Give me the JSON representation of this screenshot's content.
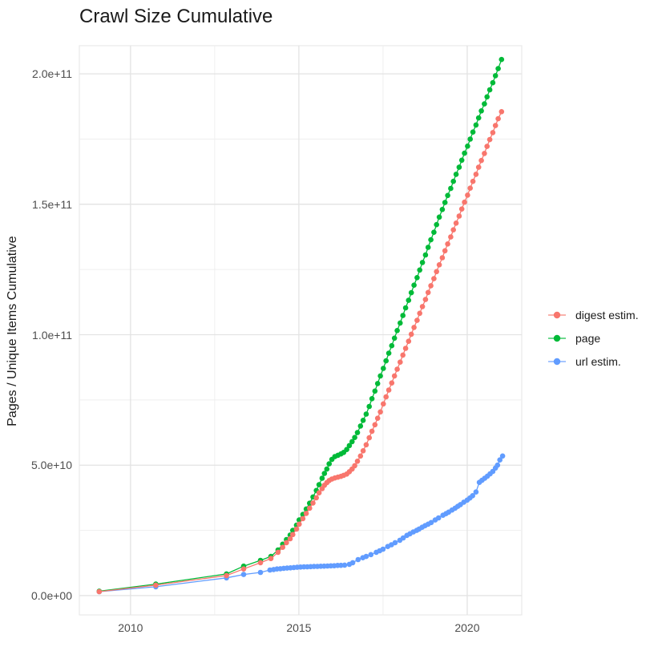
{
  "chart_data": {
    "type": "scatter",
    "title": "Crawl Size Cumulative",
    "xlabel": "",
    "ylabel": "Pages / Unique Items Cumulative",
    "grid": true,
    "legend_position": "right",
    "theme": {
      "background": "#FFFFFF",
      "grid_major": "#E3E3E3",
      "grid_minor": "#EFEFEF",
      "panel_border": "#E8E8E8",
      "tick_label_color": "#4D4D4D",
      "text_color": "#1A1A1A"
    },
    "x_axis": {
      "range": [
        2008.48,
        2021.62
      ],
      "ticks": [
        {
          "label": "2010",
          "value": 2010
        },
        {
          "label": "2015",
          "value": 2015
        },
        {
          "label": "2020",
          "value": 2020
        }
      ],
      "minor_ticks": [
        2012.5,
        2017.5
      ]
    },
    "y_axis": {
      "range": [
        -7400000000.0,
        210800000000.0
      ],
      "ticks": [
        {
          "label": "0.0e+00",
          "value": 0
        },
        {
          "label": "5.0e+10",
          "value": 50000000000.0
        },
        {
          "label": "1.0e+11",
          "value": 100000000000.0
        },
        {
          "label": "1.5e+11",
          "value": 150000000000.0
        },
        {
          "label": "2.0e+11",
          "value": 200000000000.0
        }
      ],
      "minor_ticks": [
        25000000000.0,
        75000000000.0,
        125000000000.0,
        175000000000.0
      ]
    },
    "series": [
      {
        "name": "url estim.",
        "color": "#619CFF",
        "points": [
          [
            2009.07,
            1500000000.0
          ],
          [
            2010.75,
            3400000000.0
          ],
          [
            2012.85,
            6800000000.0
          ],
          [
            2013.36,
            8100000000.0
          ],
          [
            2013.86,
            8900000000.0
          ],
          [
            2014.14,
            9800000000.0
          ],
          [
            2014.25,
            10000000000.0
          ],
          [
            2014.35,
            10200000000.0
          ],
          [
            2014.45,
            10300000000.0
          ],
          [
            2014.55,
            10450000000.0
          ],
          [
            2014.65,
            10550000000.0
          ],
          [
            2014.75,
            10650000000.0
          ],
          [
            2014.85,
            10750000000.0
          ],
          [
            2014.95,
            10850000000.0
          ],
          [
            2015.05,
            10950000000.0
          ],
          [
            2015.15,
            11000000000.0
          ],
          [
            2015.25,
            11050000000.0
          ],
          [
            2015.35,
            11100000000.0
          ],
          [
            2015.45,
            11150000000.0
          ],
          [
            2015.55,
            11200000000.0
          ],
          [
            2015.65,
            11250000000.0
          ],
          [
            2015.75,
            11300000000.0
          ],
          [
            2015.85,
            11350000000.0
          ],
          [
            2015.95,
            11400000000.0
          ],
          [
            2016.05,
            11450000000.0
          ],
          [
            2016.15,
            11550000000.0
          ],
          [
            2016.25,
            11600000000.0
          ],
          [
            2016.36,
            11700000000.0
          ],
          [
            2016.5,
            12000000000.0
          ],
          [
            2016.6,
            12600000000.0
          ],
          [
            2016.76,
            13800000000.0
          ],
          [
            2016.9,
            14500000000.0
          ],
          [
            2017.0,
            15000000000.0
          ],
          [
            2017.14,
            15700000000.0
          ],
          [
            2017.3,
            16600000000.0
          ],
          [
            2017.4,
            17200000000.0
          ],
          [
            2017.5,
            17800000000.0
          ],
          [
            2017.64,
            18800000000.0
          ],
          [
            2017.75,
            19500000000.0
          ],
          [
            2017.86,
            20300000000.0
          ],
          [
            2018.0,
            21200000000.0
          ],
          [
            2018.1,
            22100000000.0
          ],
          [
            2018.21,
            23100000000.0
          ],
          [
            2018.3,
            23700000000.0
          ],
          [
            2018.4,
            24400000000.0
          ],
          [
            2018.5,
            25000000000.0
          ],
          [
            2018.57,
            25500000000.0
          ],
          [
            2018.66,
            26200000000.0
          ],
          [
            2018.75,
            26800000000.0
          ],
          [
            2018.84,
            27400000000.0
          ],
          [
            2018.93,
            28000000000.0
          ],
          [
            2019.05,
            29000000000.0
          ],
          [
            2019.15,
            29800000000.0
          ],
          [
            2019.28,
            30800000000.0
          ],
          [
            2019.37,
            31400000000.0
          ],
          [
            2019.45,
            32000000000.0
          ],
          [
            2019.55,
            32800000000.0
          ],
          [
            2019.64,
            33500000000.0
          ],
          [
            2019.72,
            34200000000.0
          ],
          [
            2019.8,
            34900000000.0
          ],
          [
            2019.9,
            35800000000.0
          ],
          [
            2020.0,
            36600000000.0
          ],
          [
            2020.08,
            37400000000.0
          ],
          [
            2020.16,
            38300000000.0
          ],
          [
            2020.26,
            39700000000.0
          ],
          [
            2020.36,
            43400000000.0
          ],
          [
            2020.44,
            44200000000.0
          ],
          [
            2020.52,
            45000000000.0
          ],
          [
            2020.6,
            45800000000.0
          ],
          [
            2020.68,
            46700000000.0
          ],
          [
            2020.76,
            47600000000.0
          ],
          [
            2020.84,
            48900000000.0
          ],
          [
            2020.9,
            50000000000.0
          ],
          [
            2020.97,
            52000000000.0
          ],
          [
            2021.05,
            53500000000.0
          ]
        ]
      },
      {
        "name": "page",
        "color": "#00BA38",
        "points": [
          [
            2009.07,
            1700000000.0
          ],
          [
            2010.75,
            4400000000.0
          ],
          [
            2012.85,
            8300000000.0
          ],
          [
            2013.36,
            11300000000.0
          ],
          [
            2013.86,
            13500000000.0
          ],
          [
            2014.17,
            15000000000.0
          ],
          [
            2014.38,
            17500000000.0
          ],
          [
            2014.52,
            19700000000.0
          ],
          [
            2014.63,
            21500000000.0
          ],
          [
            2014.74,
            23200000000.0
          ],
          [
            2014.82,
            25000000000.0
          ],
          [
            2014.93,
            27000000000.0
          ],
          [
            2015.01,
            29000000000.0
          ],
          [
            2015.12,
            31100000000.0
          ],
          [
            2015.22,
            33200000000.0
          ],
          [
            2015.32,
            35400000000.0
          ],
          [
            2015.42,
            37800000000.0
          ],
          [
            2015.52,
            40300000000.0
          ],
          [
            2015.6,
            42500000000.0
          ],
          [
            2015.69,
            45000000000.0
          ],
          [
            2015.76,
            46800000000.0
          ],
          [
            2015.83,
            48500000000.0
          ],
          [
            2015.9,
            50500000000.0
          ],
          [
            2015.98,
            52200000000.0
          ],
          [
            2016.07,
            53300000000.0
          ],
          [
            2016.16,
            53800000000.0
          ],
          [
            2016.25,
            54300000000.0
          ],
          [
            2016.33,
            54900000000.0
          ],
          [
            2016.42,
            56000000000.0
          ],
          [
            2016.5,
            57500000000.0
          ],
          [
            2016.58,
            59000000000.0
          ],
          [
            2016.66,
            60600000000.0
          ],
          [
            2016.74,
            62500000000.0
          ],
          [
            2016.83,
            65000000000.0
          ],
          [
            2016.91,
            67200000000.0
          ],
          [
            2017.0,
            69600000000.0
          ],
          [
            2017.09,
            72500000000.0
          ],
          [
            2017.17,
            75500000000.0
          ],
          [
            2017.26,
            78400000000.0
          ],
          [
            2017.34,
            81300000000.0
          ],
          [
            2017.42,
            84200000000.0
          ],
          [
            2017.51,
            87100000000.0
          ],
          [
            2017.59,
            90000000000.0
          ],
          [
            2017.67,
            92900000000.0
          ],
          [
            2017.76,
            95800000000.0
          ],
          [
            2017.84,
            98700000000.0
          ],
          [
            2017.92,
            101600000000.0
          ],
          [
            2018.01,
            104500000000.0
          ],
          [
            2018.09,
            107400000000.0
          ],
          [
            2018.17,
            110300000000.0
          ],
          [
            2018.26,
            113200000000.0
          ],
          [
            2018.34,
            116100000000.0
          ],
          [
            2018.42,
            119000000000.0
          ],
          [
            2018.51,
            121900000000.0
          ],
          [
            2018.59,
            124800000000.0
          ],
          [
            2018.67,
            127700000000.0
          ],
          [
            2018.76,
            130600000000.0
          ],
          [
            2018.84,
            133500000000.0
          ],
          [
            2018.92,
            136400000000.0
          ],
          [
            2019.01,
            139300000000.0
          ],
          [
            2019.09,
            142200000000.0
          ],
          [
            2019.17,
            145100000000.0
          ],
          [
            2019.26,
            148000000000.0
          ],
          [
            2019.34,
            150700000000.0
          ],
          [
            2019.42,
            153400000000.0
          ],
          [
            2019.51,
            156100000000.0
          ],
          [
            2019.59,
            158800000000.0
          ],
          [
            2019.67,
            161500000000.0
          ],
          [
            2019.76,
            164200000000.0
          ],
          [
            2019.84,
            166900000000.0
          ],
          [
            2019.92,
            169600000000.0
          ],
          [
            2020.01,
            172300000000.0
          ],
          [
            2020.09,
            175000000000.0
          ],
          [
            2020.17,
            177700000000.0
          ],
          [
            2020.26,
            180400000000.0
          ],
          [
            2020.34,
            183100000000.0
          ],
          [
            2020.42,
            185800000000.0
          ],
          [
            2020.51,
            188500000000.0
          ],
          [
            2020.59,
            191200000000.0
          ],
          [
            2020.67,
            193900000000.0
          ],
          [
            2020.76,
            196600000000.0
          ],
          [
            2020.84,
            199300000000.0
          ],
          [
            2020.92,
            202000000000.0
          ],
          [
            2021.02,
            205500000000.0
          ]
        ]
      },
      {
        "name": "digest estim.",
        "color": "#F8766D",
        "points": [
          [
            2009.07,
            1500000000.0
          ],
          [
            2010.75,
            4000000000.0
          ],
          [
            2012.85,
            7700000000.0
          ],
          [
            2013.36,
            10200000000.0
          ],
          [
            2013.86,
            12600000000.0
          ],
          [
            2014.17,
            14200000000.0
          ],
          [
            2014.38,
            16600000000.0
          ],
          [
            2014.52,
            18500000000.0
          ],
          [
            2014.63,
            20300000000.0
          ],
          [
            2014.74,
            21800000000.0
          ],
          [
            2014.82,
            23400000000.0
          ],
          [
            2014.93,
            25500000000.0
          ],
          [
            2015.01,
            27400000000.0
          ],
          [
            2015.12,
            29500000000.0
          ],
          [
            2015.22,
            31500000000.0
          ],
          [
            2015.32,
            33500000000.0
          ],
          [
            2015.42,
            35500000000.0
          ],
          [
            2015.52,
            37500000000.0
          ],
          [
            2015.6,
            39400000000.0
          ],
          [
            2015.69,
            41000000000.0
          ],
          [
            2015.76,
            42300000000.0
          ],
          [
            2015.83,
            43300000000.0
          ],
          [
            2015.9,
            44100000000.0
          ],
          [
            2015.98,
            44700000000.0
          ],
          [
            2016.07,
            45100000000.0
          ],
          [
            2016.16,
            45400000000.0
          ],
          [
            2016.25,
            45700000000.0
          ],
          [
            2016.33,
            46100000000.0
          ],
          [
            2016.42,
            46600000000.0
          ],
          [
            2016.5,
            47500000000.0
          ],
          [
            2016.58,
            48500000000.0
          ],
          [
            2016.66,
            49800000000.0
          ],
          [
            2016.74,
            51500000000.0
          ],
          [
            2016.83,
            53500000000.0
          ],
          [
            2016.91,
            55500000000.0
          ],
          [
            2017.0,
            57800000000.0
          ],
          [
            2017.09,
            60500000000.0
          ],
          [
            2017.17,
            63000000000.0
          ],
          [
            2017.26,
            65500000000.0
          ],
          [
            2017.34,
            68000000000.0
          ],
          [
            2017.42,
            70400000000.0
          ],
          [
            2017.51,
            73500000000.0
          ],
          [
            2017.59,
            76200000000.0
          ],
          [
            2017.67,
            78800000000.0
          ],
          [
            2017.76,
            81500000000.0
          ],
          [
            2017.84,
            84200000000.0
          ],
          [
            2017.92,
            86800000000.0
          ],
          [
            2018.01,
            89500000000.0
          ],
          [
            2018.09,
            92200000000.0
          ],
          [
            2018.17,
            94800000000.0
          ],
          [
            2018.26,
            97500000000.0
          ],
          [
            2018.34,
            100200000000.0
          ],
          [
            2018.42,
            102800000000.0
          ],
          [
            2018.51,
            105500000000.0
          ],
          [
            2018.59,
            108200000000.0
          ],
          [
            2018.67,
            110800000000.0
          ],
          [
            2018.76,
            113500000000.0
          ],
          [
            2018.84,
            116200000000.0
          ],
          [
            2018.92,
            118800000000.0
          ],
          [
            2019.01,
            121500000000.0
          ],
          [
            2019.09,
            124200000000.0
          ],
          [
            2019.17,
            126800000000.0
          ],
          [
            2019.26,
            129500000000.0
          ],
          [
            2019.34,
            132200000000.0
          ],
          [
            2019.42,
            134800000000.0
          ],
          [
            2019.51,
            137500000000.0
          ],
          [
            2019.59,
            140200000000.0
          ],
          [
            2019.67,
            142800000000.0
          ],
          [
            2019.76,
            145500000000.0
          ],
          [
            2019.84,
            148200000000.0
          ],
          [
            2019.92,
            150800000000.0
          ],
          [
            2020.01,
            153500000000.0
          ],
          [
            2020.09,
            156200000000.0
          ],
          [
            2020.17,
            158800000000.0
          ],
          [
            2020.26,
            161500000000.0
          ],
          [
            2020.34,
            164200000000.0
          ],
          [
            2020.42,
            166800000000.0
          ],
          [
            2020.51,
            169500000000.0
          ],
          [
            2020.59,
            172200000000.0
          ],
          [
            2020.67,
            174800000000.0
          ],
          [
            2020.76,
            177500000000.0
          ],
          [
            2020.84,
            180200000000.0
          ],
          [
            2020.92,
            182800000000.0
          ],
          [
            2021.02,
            185500000000.0
          ]
        ]
      }
    ],
    "legend_order": [
      "digest estim.",
      "page",
      "url estim."
    ]
  }
}
